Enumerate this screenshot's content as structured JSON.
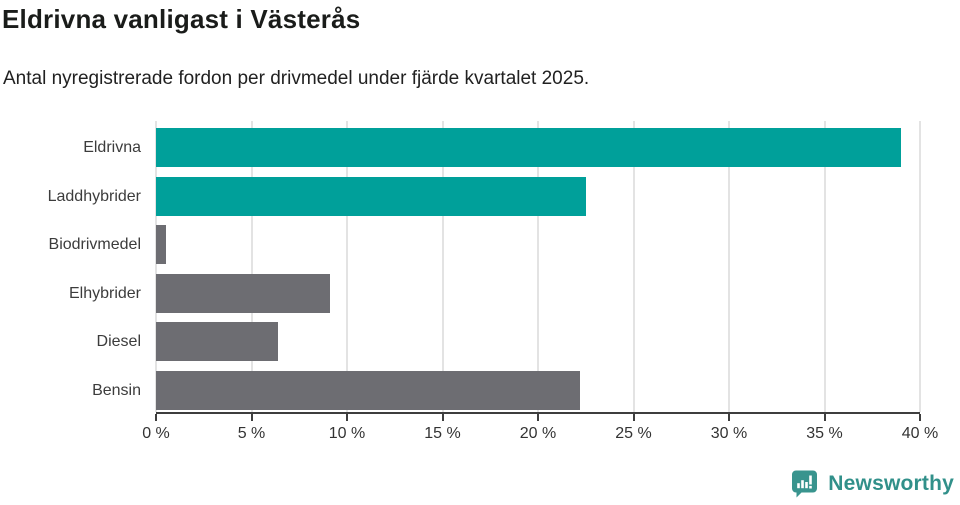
{
  "header": {
    "title": "Eldrivna vanligast i Västerås",
    "subtitle": "Antal nyregistrerade fordon per drivmedel under fjärde kvartalet 2025."
  },
  "chart_data": {
    "type": "bar",
    "orientation": "horizontal",
    "title": "Eldrivna vanligast i Västerås",
    "subtitle": "Antal nyregistrerade fordon per drivmedel under fjärde kvartalet 2025.",
    "categories": [
      "Eldrivna",
      "Laddhybrider",
      "Biodrivmedel",
      "Elhybrider",
      "Diesel",
      "Bensin"
    ],
    "values": [
      39.0,
      22.5,
      0.5,
      9.1,
      6.4,
      22.2
    ],
    "unit": "%",
    "xlabel": "",
    "ylabel": "",
    "xlim": [
      0,
      40
    ],
    "xticks": [
      0,
      5,
      10,
      15,
      20,
      25,
      30,
      35,
      40
    ],
    "xtick_labels": [
      "0 %",
      "5 %",
      "10 %",
      "15 %",
      "20 %",
      "25 %",
      "30 %",
      "35 %",
      "40 %"
    ],
    "grid": true,
    "legend": "none",
    "bar_colors": [
      "#00a09a",
      "#00a09a",
      "#6d6d72",
      "#6d6d72",
      "#6d6d72",
      "#6d6d72"
    ],
    "highlight_color": "#00a09a",
    "default_color": "#6d6d72",
    "gridline_color": "#e3e3e3",
    "axis_color": "#3e3e3e"
  },
  "footer": {
    "brand": "Newsworthy",
    "brand_color": "#31908a",
    "logo_icon": "newsworthy-speech-bubble-bar-chart-icon",
    "logo_icon_color": "#39948e"
  }
}
